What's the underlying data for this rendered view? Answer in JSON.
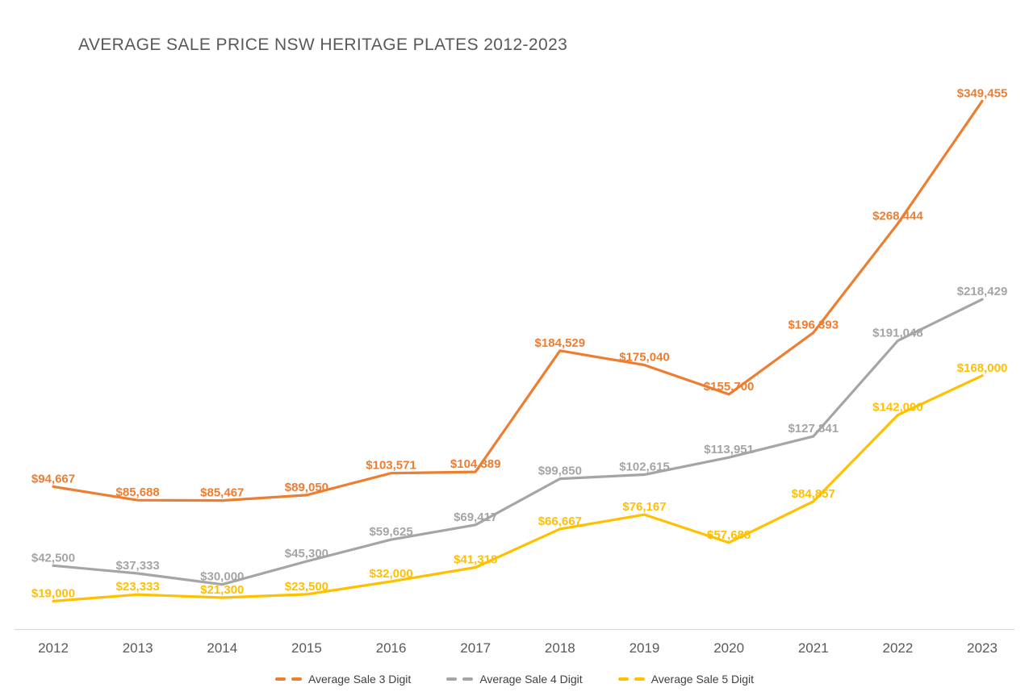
{
  "title": "AVERAGE SALE PRICE NSW HERITAGE PLATES 2012-2023",
  "colors": {
    "title_text": "#595959",
    "axis_text": "#595959",
    "axis_line": "#D9D9D9",
    "legend_text": "#404040",
    "background": "#FFFFFF"
  },
  "value_label_prefix": "$",
  "chart_data": {
    "type": "line",
    "title": "AVERAGE SALE PRICE NSW HERITAGE PLATES 2012-2023",
    "categories": [
      "2012",
      "2013",
      "2014",
      "2015",
      "2016",
      "2017",
      "2018",
      "2019",
      "2020",
      "2021",
      "2022",
      "2023"
    ],
    "series": [
      {
        "name": "Average Sale 3 Digit",
        "color": "#ED7D31",
        "values": [
          94667,
          85688,
          85467,
          89050,
          103571,
          104389,
          184529,
          175040,
          155700,
          196393,
          268444,
          349455
        ]
      },
      {
        "name": "Average Sale 4 Digit",
        "color": "#A5A5A5",
        "values": [
          42500,
          37333,
          30000,
          45300,
          59625,
          69417,
          99850,
          102615,
          113951,
          127841,
          191048,
          218429
        ]
      },
      {
        "name": "Average Sale 5 Digit",
        "color": "#FFC000",
        "values": [
          19000,
          23333,
          21300,
          23500,
          32000,
          41318,
          66667,
          76167,
          57688,
          84857,
          142000,
          168000
        ]
      }
    ],
    "xlabel": "",
    "ylabel": "",
    "ylim": [
      0,
      380000
    ],
    "grid": false,
    "y_axis_visible": false,
    "data_labels": true,
    "legend_position": "bottom"
  }
}
